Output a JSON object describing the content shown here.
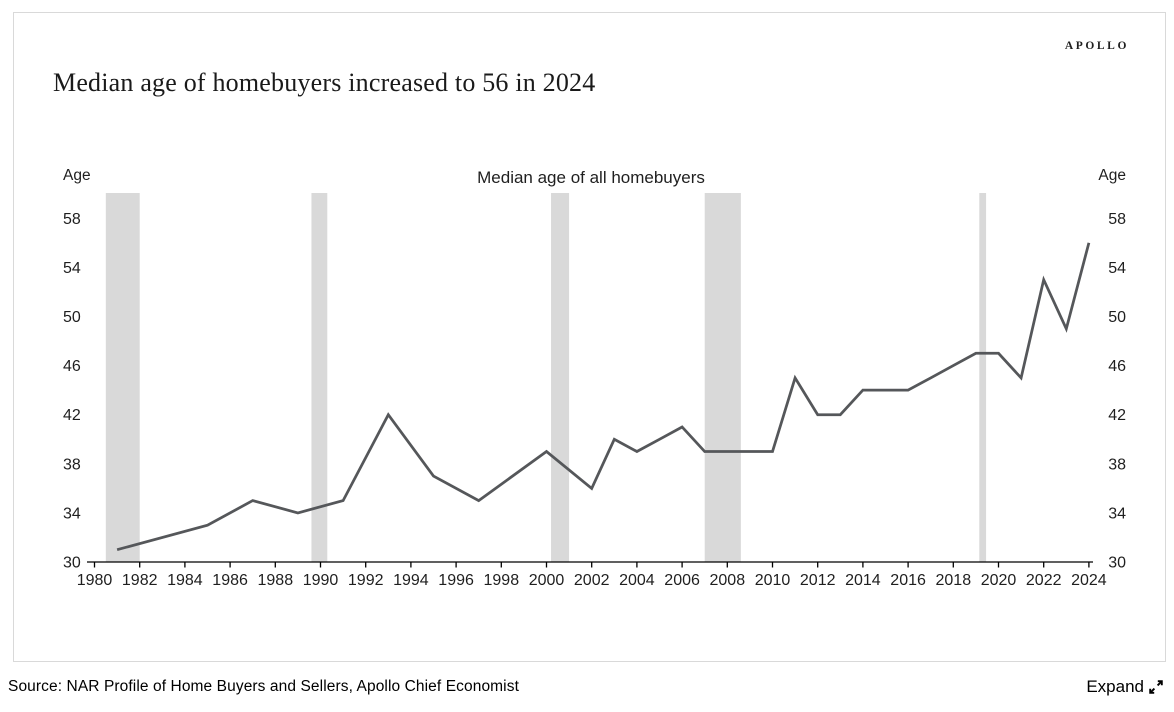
{
  "page": {
    "title": "Median age of homebuyers increased to 56 in 2024",
    "brand": "APOLLO",
    "source": "Source: NAR Profile of Home Buyers and Sellers, Apollo Chief Economist",
    "expand_label": "Expand"
  },
  "chart_data": {
    "type": "line",
    "title": "Median age of all homebuyers",
    "series_name": "Median age of all homebuyers",
    "y_axis_label_left": "Age",
    "y_axis_label_right": "Age",
    "x": [
      1981,
      1985,
      1987,
      1989,
      1991,
      1993,
      1995,
      1997,
      2000,
      2002,
      2003,
      2004,
      2005,
      2006,
      2007,
      2008,
      2009,
      2010,
      2011,
      2012,
      2013,
      2014,
      2015,
      2016,
      2017,
      2018,
      2019,
      2020,
      2021,
      2022,
      2023,
      2024
    ],
    "y": [
      31,
      33,
      35,
      34,
      35,
      42,
      37,
      35,
      39,
      36,
      40,
      39,
      40,
      41,
      39,
      39,
      39,
      39,
      45,
      42,
      42,
      44,
      44,
      44,
      45,
      46,
      47,
      47,
      45,
      53,
      49,
      56
    ],
    "x_ticks": [
      1980,
      1982,
      1984,
      1986,
      1988,
      1990,
      1992,
      1994,
      1996,
      1998,
      2000,
      2002,
      2004,
      2006,
      2008,
      2010,
      2012,
      2014,
      2016,
      2018,
      2020,
      2022,
      2024
    ],
    "y_ticks": [
      30,
      34,
      38,
      42,
      46,
      50,
      54,
      58
    ],
    "xlim": [
      1979.7,
      2024.2
    ],
    "ylim": [
      30,
      60
    ],
    "grid": false,
    "legend_position": "top-center",
    "recession_bands": [
      [
        1980.5,
        1982.0
      ],
      [
        1989.6,
        1990.3
      ],
      [
        2000.2,
        2001.0
      ],
      [
        2007.0,
        2008.6
      ],
      [
        2019.15,
        2019.45
      ]
    ],
    "line_color": "#55575a",
    "band_color": "#d9d9d9",
    "axis_color": "#000000",
    "text_color": "#1f1f1f"
  }
}
